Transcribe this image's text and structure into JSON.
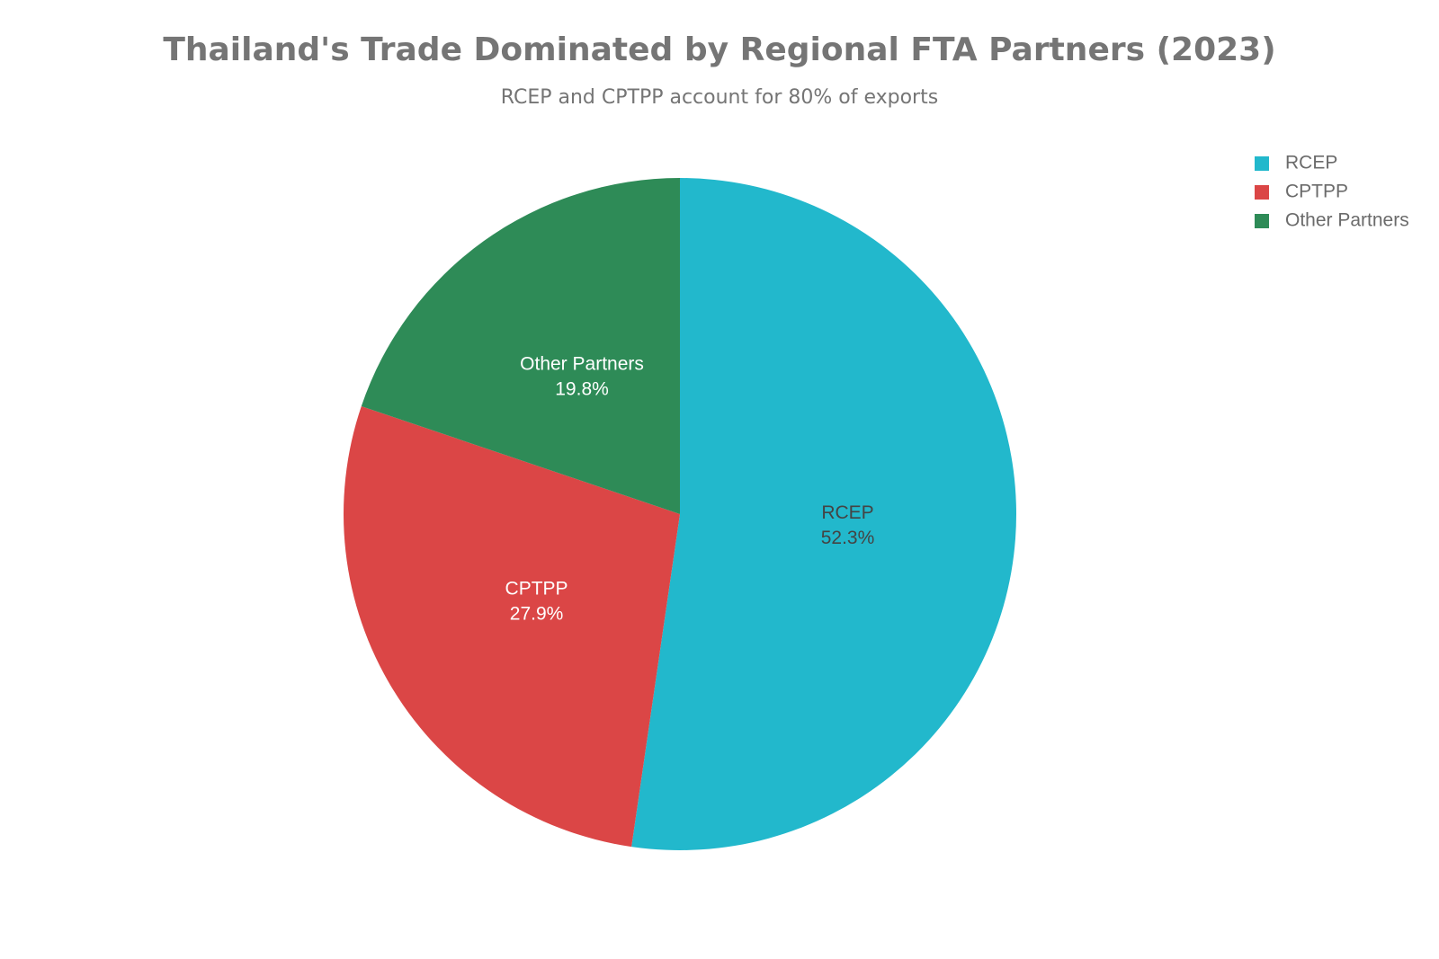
{
  "chart_data": {
    "type": "pie",
    "title": "Thailand's Trade Dominated by Regional FTA Partners (2023)",
    "subtitle": "RCEP and CPTPP account for 80% of exports",
    "categories": [
      "RCEP",
      "CPTPP",
      "Other Partners"
    ],
    "values": [
      52.3,
      27.9,
      19.8
    ],
    "value_labels": [
      "52.3%",
      "27.9%",
      "19.8%"
    ],
    "colors": [
      "#22b8cc",
      "#db4646",
      "#2e8b57"
    ],
    "legend": "top-right"
  }
}
